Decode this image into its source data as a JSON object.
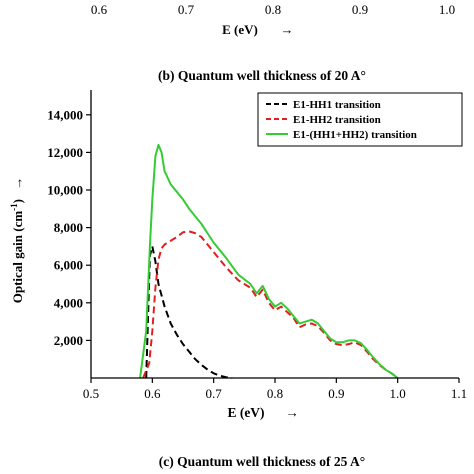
{
  "top_fragment": {
    "tick_labels": [
      "0.6",
      "0.7",
      "0.8",
      "0.9",
      "1.0"
    ],
    "xlabel": "E (eV)",
    "arrow": "→"
  },
  "caption_b": "(b) Quantum well thickness of 20 A°",
  "caption_c": "(c) Quantum well thickness of 25 A°",
  "arrow": "→",
  "chart_data": {
    "type": "line",
    "xlabel": "E (eV)",
    "ylabel": "Optical gain (cm-1)",
    "ylabel_parts": {
      "pre": "Optical gain (cm",
      "sup": "-1",
      "post": ")"
    },
    "xlim": [
      0.5,
      1.1
    ],
    "ylim": [
      0,
      15000
    ],
    "xticks": [
      0.5,
      0.6,
      0.7,
      0.8,
      0.9,
      1.0,
      1.1
    ],
    "xtick_labels": [
      "0.5",
      "0.6",
      "0.7",
      "0.8",
      "0.9",
      "1.0",
      "1.1"
    ],
    "yticks": [
      2000,
      4000,
      6000,
      8000,
      10000,
      12000,
      14000
    ],
    "ytick_labels": [
      "2,000",
      "4,000",
      "6,000",
      "8,000",
      "10,000",
      "12,000",
      "14,000"
    ],
    "grid": false,
    "legend_position": "top-right",
    "series": [
      {
        "name": "E1-HH1 transition",
        "color": "#000000",
        "style": "dashed",
        "x": [
          0.59,
          0.596,
          0.6,
          0.605,
          0.61,
          0.62,
          0.63,
          0.64,
          0.65,
          0.66,
          0.67,
          0.68,
          0.69,
          0.7,
          0.71,
          0.72,
          0.73
        ],
        "y": [
          0,
          6500,
          7000,
          6200,
          5000,
          3800,
          2900,
          2300,
          1800,
          1400,
          1000,
          700,
          450,
          250,
          120,
          40,
          0
        ]
      },
      {
        "name": "E1-HH2 transition",
        "color": "#e02020",
        "style": "dashed",
        "x": [
          0.585,
          0.595,
          0.6,
          0.605,
          0.61,
          0.615,
          0.62,
          0.63,
          0.64,
          0.65,
          0.66,
          0.67,
          0.68,
          0.69,
          0.7,
          0.72,
          0.74,
          0.76,
          0.77,
          0.78,
          0.79,
          0.8,
          0.81,
          0.82,
          0.83,
          0.84,
          0.85,
          0.86,
          0.87,
          0.88,
          0.89,
          0.9,
          0.91,
          0.92,
          0.93,
          0.94,
          0.95,
          0.96,
          0.97,
          0.98,
          0.99,
          1.0
        ],
        "y": [
          0,
          800,
          2500,
          4800,
          6300,
          6900,
          7100,
          7300,
          7500,
          7750,
          7800,
          7700,
          7500,
          7100,
          6700,
          5900,
          5200,
          4800,
          4300,
          4700,
          4000,
          3600,
          3800,
          3500,
          3200,
          2700,
          2850,
          2900,
          2750,
          2400,
          2000,
          1800,
          1750,
          1800,
          1900,
          1750,
          1400,
          1000,
          700,
          450,
          250,
          0
        ]
      },
      {
        "name": "E1-(HH1+HH2) transition",
        "color": "#33cc33",
        "style": "solid",
        "x": [
          0.58,
          0.59,
          0.596,
          0.6,
          0.605,
          0.61,
          0.615,
          0.62,
          0.63,
          0.64,
          0.65,
          0.66,
          0.67,
          0.68,
          0.69,
          0.7,
          0.72,
          0.74,
          0.76,
          0.77,
          0.78,
          0.79,
          0.8,
          0.81,
          0.82,
          0.83,
          0.84,
          0.85,
          0.86,
          0.87,
          0.88,
          0.89,
          0.9,
          0.91,
          0.92,
          0.93,
          0.94,
          0.95,
          0.96,
          0.97,
          0.98,
          0.99,
          1.0
        ],
        "y": [
          0,
          2500,
          7000,
          9500,
          11800,
          12400,
          12000,
          11000,
          10300,
          9900,
          9500,
          9000,
          8600,
          8200,
          7700,
          7200,
          6400,
          5500,
          5000,
          4500,
          4900,
          4200,
          3800,
          4000,
          3700,
          3300,
          2900,
          3000,
          3100,
          2900,
          2500,
          2100,
          1900,
          1900,
          2000,
          2000,
          1850,
          1500,
          1100,
          750,
          450,
          250,
          0
        ]
      }
    ]
  }
}
